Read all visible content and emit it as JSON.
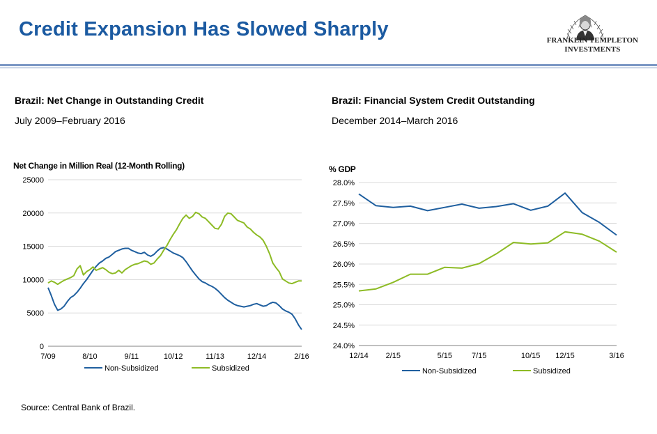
{
  "header": {
    "title": "Credit Expansion Has Slowed Sharply",
    "logo_line1": "FRANKLIN TEMPLETON",
    "logo_line2": "INVESTMENTS"
  },
  "colors": {
    "title": "#1b5aa1",
    "non_subsidized": "#1f5f9f",
    "subsidized": "#8dbb25",
    "rule": "#7b97c4"
  },
  "chart_data": [
    {
      "type": "line",
      "title": "Brazil: Net Change in Outstanding Credit",
      "subtitle": "July 2009–February 2016",
      "ylabel": "Net Change in Million Real (12-Month Rolling)",
      "ylim": [
        0,
        25000
      ],
      "yticks": [
        0,
        5000,
        10000,
        15000,
        20000,
        25000
      ],
      "ytick_labels": [
        "0",
        "5000",
        "10000",
        "15000",
        "20000",
        "25000"
      ],
      "xlim": [
        0,
        79
      ],
      "xticks": [
        0,
        13,
        26,
        39,
        52,
        65,
        79
      ],
      "xtick_labels": [
        "7/09",
        "8/10",
        "9/11",
        "10/12",
        "11/13",
        "12/14",
        "2/16"
      ],
      "series": [
        {
          "name": "Non-Subsidized",
          "color": "#1f5f9f",
          "x": [
            0,
            1,
            2,
            3,
            4,
            5,
            6,
            7,
            8,
            9,
            10,
            11,
            12,
            13,
            14,
            15,
            16,
            17,
            18,
            19,
            20,
            21,
            22,
            23,
            24,
            25,
            26,
            27,
            28,
            29,
            30,
            31,
            32,
            33,
            34,
            35,
            36,
            37,
            38,
            39,
            40,
            41,
            42,
            43,
            44,
            45,
            46,
            47,
            48,
            49,
            50,
            51,
            52,
            53,
            54,
            55,
            56,
            57,
            58,
            59,
            60,
            61,
            62,
            63,
            64,
            65,
            66,
            67,
            68,
            69,
            70,
            71,
            72,
            73,
            74,
            75,
            76,
            77,
            78,
            79
          ],
          "values": [
            8800,
            7600,
            6300,
            5400,
            5600,
            6000,
            6700,
            7300,
            7600,
            8100,
            8700,
            9400,
            10000,
            10700,
            11400,
            12000,
            12500,
            12800,
            13200,
            13400,
            13800,
            14200,
            14400,
            14600,
            14700,
            14700,
            14400,
            14200,
            14000,
            13900,
            14100,
            13700,
            13500,
            13800,
            14300,
            14700,
            14800,
            14600,
            14300,
            14000,
            13800,
            13600,
            13300,
            12700,
            12000,
            11300,
            10700,
            10100,
            9700,
            9500,
            9200,
            9000,
            8700,
            8300,
            7800,
            7300,
            6900,
            6600,
            6300,
            6100,
            6000,
            5900,
            6000,
            6100,
            6300,
            6400,
            6200,
            6000,
            6100,
            6400,
            6600,
            6500,
            6100,
            5600,
            5300,
            5100,
            4800,
            4100,
            3200,
            2500
          ]
        },
        {
          "name": "Subsidized",
          "color": "#8dbb25",
          "x": [
            0,
            1,
            2,
            3,
            4,
            5,
            6,
            7,
            8,
            9,
            10,
            11,
            12,
            13,
            14,
            15,
            16,
            17,
            18,
            19,
            20,
            21,
            22,
            23,
            24,
            25,
            26,
            27,
            28,
            29,
            30,
            31,
            32,
            33,
            34,
            35,
            36,
            37,
            38,
            39,
            40,
            41,
            42,
            43,
            44,
            45,
            46,
            47,
            48,
            49,
            50,
            51,
            52,
            53,
            54,
            55,
            56,
            57,
            58,
            59,
            60,
            61,
            62,
            63,
            64,
            65,
            66,
            67,
            68,
            69,
            70,
            71,
            72,
            73,
            74,
            75,
            76,
            77,
            78,
            79
          ],
          "values": [
            9500,
            9800,
            9600,
            9300,
            9600,
            9900,
            10100,
            10300,
            10600,
            11600,
            12100,
            10700,
            11200,
            11500,
            11900,
            11400,
            11600,
            11800,
            11500,
            11100,
            10900,
            11000,
            11400,
            11000,
            11500,
            11800,
            12100,
            12300,
            12400,
            12600,
            12800,
            12700,
            12300,
            12500,
            13100,
            13600,
            14400,
            15100,
            16000,
            16800,
            17500,
            18400,
            19200,
            19700,
            19200,
            19500,
            20100,
            19900,
            19400,
            19200,
            18700,
            18200,
            17700,
            17600,
            18300,
            19500,
            20000,
            19900,
            19400,
            18900,
            18700,
            18500,
            17900,
            17600,
            17100,
            16700,
            16400,
            15900,
            15000,
            13900,
            12500,
            11800,
            11200,
            10100,
            9800,
            9500,
            9400,
            9600,
            9800,
            9800
          ]
        }
      ],
      "legend": "bottom",
      "grid": "horizontal"
    },
    {
      "type": "line",
      "title": "Brazil: Financial System Credit Outstanding",
      "subtitle": "December 2014–March 2016",
      "ylabel": "% GDP",
      "ylim": [
        24.0,
        28.0
      ],
      "yticks": [
        24.0,
        24.5,
        25.0,
        25.5,
        26.0,
        26.5,
        27.0,
        27.5,
        28.0
      ],
      "ytick_labels": [
        "24.0%",
        "24.5%",
        "25.0%",
        "25.5%",
        "26.0%",
        "26.5%",
        "27.0%",
        "27.5%",
        "28.0%"
      ],
      "xlim": [
        0,
        15
      ],
      "xticks": [
        0,
        2,
        5,
        7,
        10,
        12,
        15
      ],
      "xtick_labels": [
        "12/14",
        "2/15",
        "5/15",
        "7/15",
        "10/15",
        "12/15",
        "3/16"
      ],
      "series": [
        {
          "name": "Non-Subsidized",
          "color": "#1f5f9f",
          "x": [
            0,
            1,
            2,
            3,
            4,
            5,
            6,
            7,
            8,
            9,
            10,
            11,
            12,
            13,
            14,
            15
          ],
          "values": [
            27.72,
            27.43,
            27.39,
            27.42,
            27.31,
            27.39,
            27.47,
            27.37,
            27.41,
            27.48,
            27.32,
            27.42,
            27.74,
            27.26,
            27.02,
            26.71
          ]
        },
        {
          "name": "Subsidized",
          "color": "#8dbb25",
          "x": [
            0,
            1,
            2,
            3,
            4,
            5,
            6,
            7,
            8,
            9,
            10,
            11,
            12,
            13,
            14,
            15
          ],
          "values": [
            25.34,
            25.39,
            25.55,
            25.75,
            25.75,
            25.92,
            25.9,
            26.01,
            26.25,
            26.53,
            26.49,
            26.52,
            26.79,
            26.73,
            26.56,
            26.29
          ]
        }
      ],
      "legend": "bottom",
      "grid": "horizontal"
    }
  ],
  "footer": {
    "source": "Source: Central Bank of Brazil."
  }
}
